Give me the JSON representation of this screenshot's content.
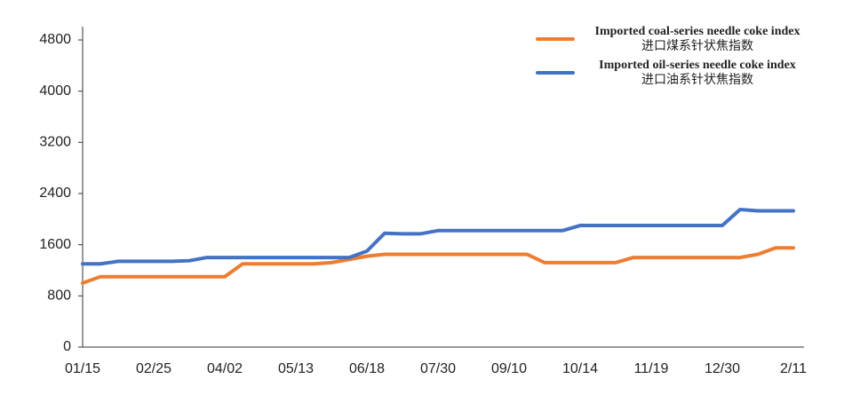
{
  "chart_data": {
    "type": "line",
    "categories": [
      "01/15",
      null,
      null,
      null,
      "02/25",
      null,
      null,
      null,
      "04/02",
      null,
      null,
      null,
      "05/13",
      null,
      null,
      null,
      "06/18",
      null,
      null,
      null,
      "07/30",
      null,
      null,
      null,
      "09/10",
      null,
      null,
      null,
      "10/14",
      null,
      null,
      null,
      "11/19",
      null,
      null,
      null,
      "12/30",
      null,
      null,
      null,
      "2/11"
    ],
    "series": [
      {
        "name": "Imported coal-series needle coke index",
        "name_zh": "进口煤系针状焦指数",
        "color": "#ed7d31",
        "values": [
          1000,
          1100,
          1100,
          1100,
          1100,
          1100,
          1100,
          1100,
          1100,
          1300,
          1300,
          1300,
          1300,
          1300,
          1320,
          1370,
          1420,
          1450,
          1450,
          1450,
          1450,
          1450,
          1450,
          1450,
          1450,
          1450,
          1320,
          1320,
          1320,
          1320,
          1320,
          1400,
          1400,
          1400,
          1400,
          1400,
          1400,
          1400,
          1450,
          1550,
          1550
        ]
      },
      {
        "name": "Imported oil-series needle coke index",
        "name_zh": "进口油系针状焦指数",
        "color": "#4472c4",
        "values": [
          1300,
          1300,
          1340,
          1340,
          1340,
          1340,
          1350,
          1400,
          1400,
          1400,
          1400,
          1400,
          1400,
          1400,
          1400,
          1400,
          1500,
          1780,
          1770,
          1770,
          1820,
          1820,
          1820,
          1820,
          1820,
          1820,
          1820,
          1820,
          1900,
          1900,
          1900,
          1900,
          1900,
          1900,
          1900,
          1900,
          1900,
          2150,
          2130,
          2130,
          2130
        ]
      }
    ],
    "ylim": [
      0,
      4800
    ],
    "yticks": [
      0,
      800,
      1600,
      2400,
      3200,
      4000,
      4800
    ],
    "grid": false,
    "legend": "upper right"
  }
}
